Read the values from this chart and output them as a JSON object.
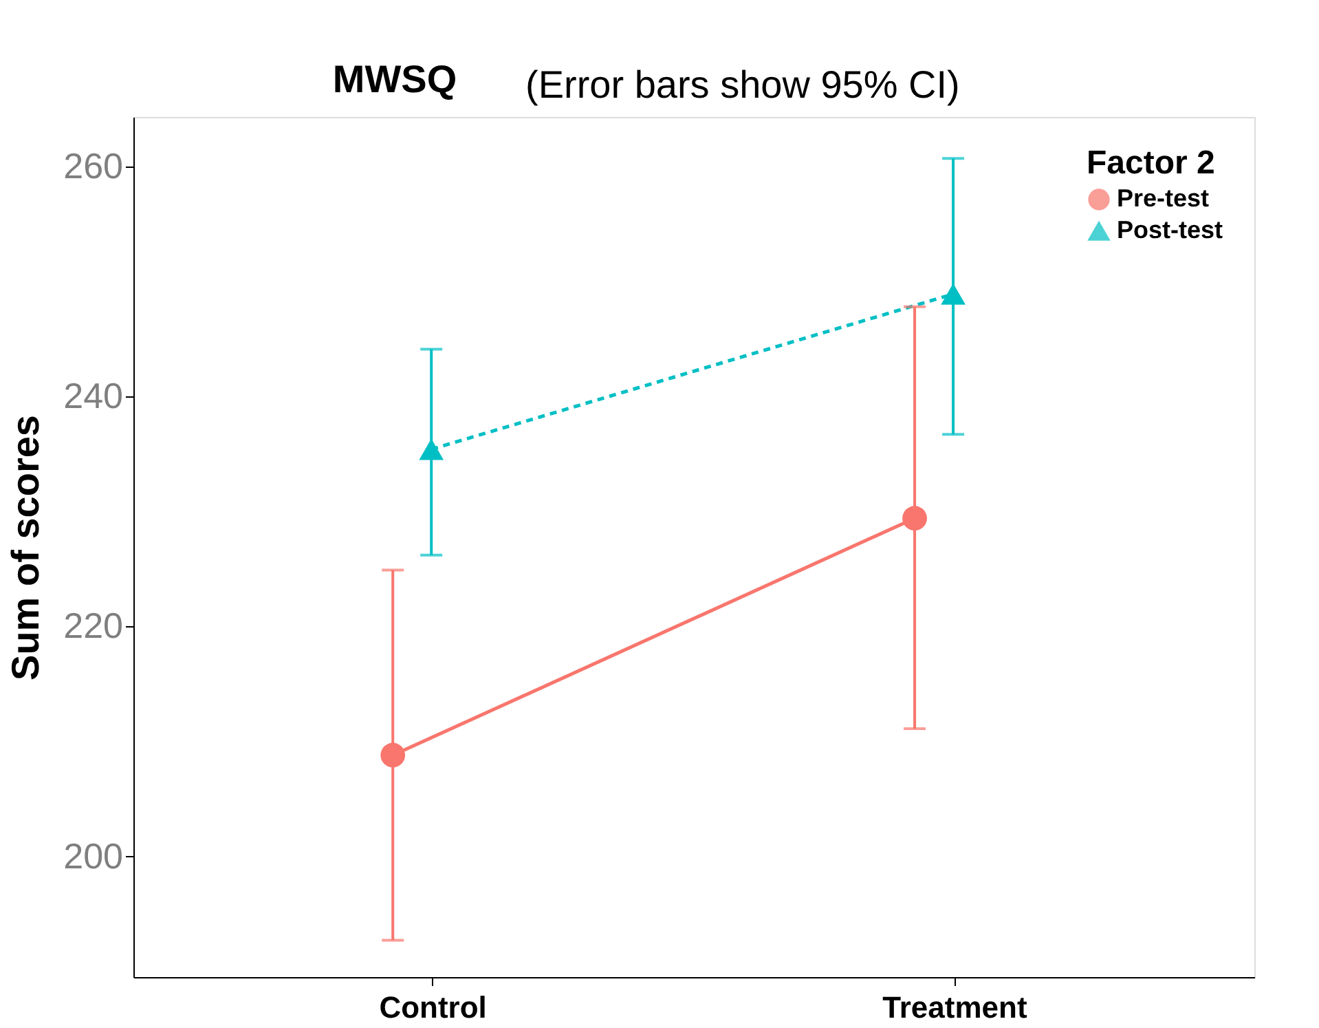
{
  "chart_data": {
    "type": "line",
    "title": "MWSQ",
    "subtitle": "(Error bars show 95% CI)",
    "ylabel": "Sum of scores",
    "legend_title": "Factor 2",
    "categories": [
      "Control",
      "Treatment"
    ],
    "series": [
      {
        "name": "Pre-test",
        "color": "#f8766d",
        "marker": "circle",
        "line_style": "solid",
        "values": [
          208.8,
          229.4
        ],
        "errors": [
          [
            192.7,
            224.9
          ],
          [
            211.1,
            247.8
          ]
        ]
      },
      {
        "name": "Post-test",
        "color": "#00bfc4",
        "marker": "triangle",
        "line_style": "dashed",
        "values": [
          235.4,
          248.9
        ],
        "errors": [
          [
            226.2,
            244.1
          ],
          [
            236.7,
            260.7
          ]
        ]
      }
    ],
    "ylim": [
      189.5,
      264.3
    ],
    "yticks": [
      200,
      220,
      240,
      260
    ],
    "grid": false,
    "legend": "top right"
  }
}
